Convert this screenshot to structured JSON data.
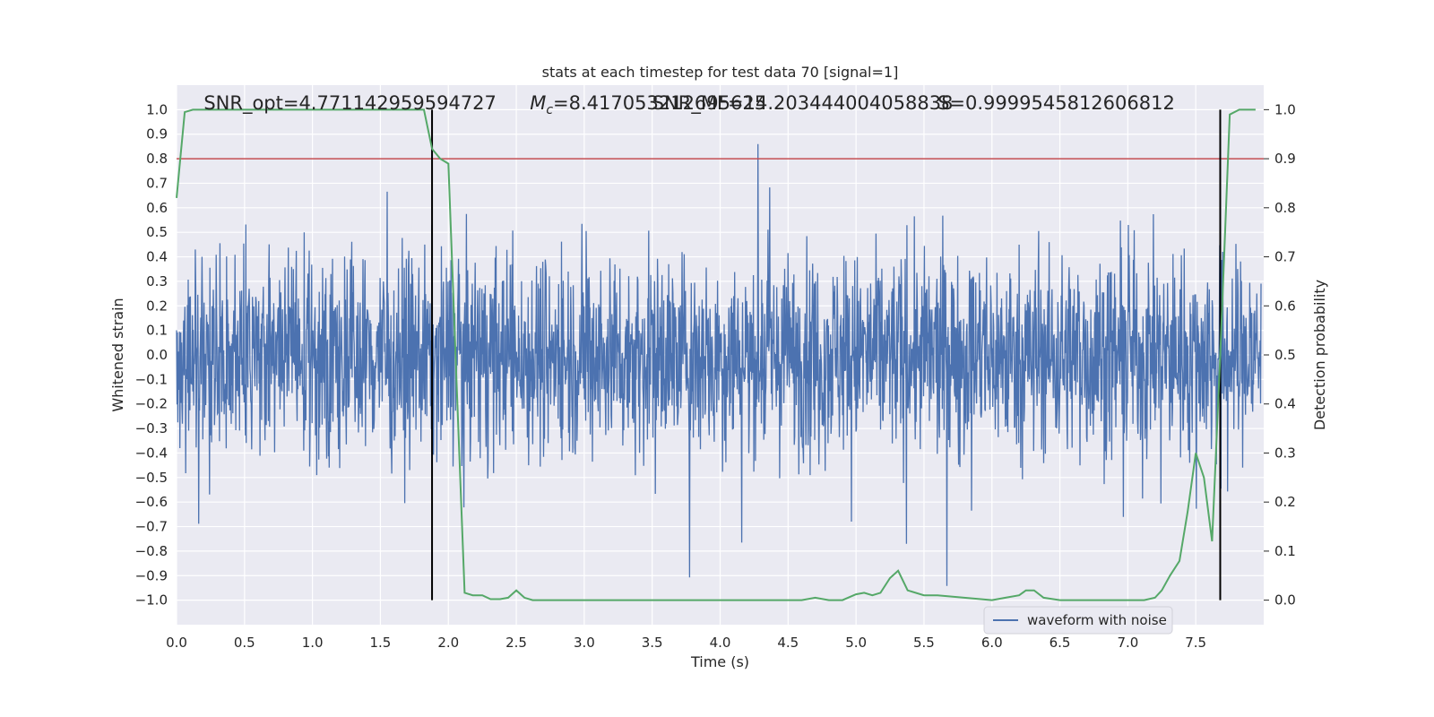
{
  "chart_data": {
    "type": "line",
    "title": "stats at each timestep for test data 70 [signal=1]",
    "xlabel": "Time (s)",
    "ylabel": "Whitened strain",
    "y2label": "Detection probability",
    "xlim": [
      0.0,
      8.0
    ],
    "ylim": [
      -1.1,
      1.1
    ],
    "y2lim": [
      -0.05,
      1.05
    ],
    "x_ticks": [
      "0.0",
      "0.5",
      "1.0",
      "1.5",
      "2.0",
      "2.5",
      "3.0",
      "3.5",
      "4.0",
      "4.5",
      "5.0",
      "5.5",
      "6.0",
      "6.5",
      "7.0",
      "7.5"
    ],
    "y_ticks": [
      "1.0",
      "0.9",
      "0.8",
      "0.7",
      "0.6",
      "0.5",
      "0.4",
      "0.3",
      "0.2",
      "0.1",
      "0.0",
      "−0.1",
      "−0.2",
      "−0.3",
      "−0.4",
      "−0.5",
      "−0.6",
      "−0.7",
      "−0.8",
      "−0.9",
      "−1.0"
    ],
    "y2_ticks": [
      "1.0",
      "0.9",
      "0.8",
      "0.7",
      "0.6",
      "0.5",
      "0.4",
      "0.3",
      "0.2",
      "0.1",
      "0.0"
    ],
    "grid": true,
    "legend": {
      "position": "bottom-right",
      "entries": [
        "waveform with noise"
      ]
    },
    "annotations": [
      {
        "text": "SNR_opt=4.771142959594727",
        "x": 0.2
      },
      {
        "text": "M_c=8.417053212695625",
        "x": 2.6,
        "math_symbol": "M",
        "math_sub": "c",
        "rest": "=8.417053212695625"
      },
      {
        "text": "SNR_MF=14.203444004058838",
        "x": 3.5
      },
      {
        "text": "S=0.9999545812606812",
        "x": 5.6
      }
    ],
    "threshold_line": {
      "y2": 0.9,
      "color": "#c44e52"
    },
    "event_markers": {
      "x": [
        1.88,
        7.68
      ],
      "color": "#000000"
    },
    "series": [
      {
        "name": "waveform with noise",
        "axis": "left",
        "color": "#4c72b0",
        "style": "dense noise, approx. ±0.4 typical, peaks to ±1.0"
      },
      {
        "axis": "right",
        "color": "#55a868",
        "x": [
          0.0,
          0.06,
          0.12,
          0.25,
          0.5,
          0.75,
          1.0,
          1.25,
          1.5,
          1.75,
          1.82,
          1.88,
          1.94,
          2.0,
          2.06,
          2.12,
          2.18,
          2.25,
          2.31,
          2.38,
          2.44,
          2.5,
          2.56,
          2.62,
          2.75,
          3.0,
          3.25,
          3.5,
          3.75,
          4.0,
          4.25,
          4.5,
          4.6,
          4.7,
          4.8,
          4.9,
          5.0,
          5.06,
          5.12,
          5.18,
          5.25,
          5.31,
          5.38,
          5.5,
          5.6,
          6.0,
          6.1,
          6.2,
          6.25,
          6.31,
          6.38,
          6.5,
          7.0,
          7.12,
          7.2,
          7.25,
          7.31,
          7.38,
          7.44,
          7.5,
          7.56,
          7.62,
          7.68,
          7.75,
          7.82,
          7.94
        ],
        "values": [
          0.82,
          0.995,
          1.0,
          1.0,
          1.0,
          1.0,
          1.0,
          1.0,
          1.0,
          1.0,
          1.0,
          0.92,
          0.9,
          0.89,
          0.45,
          0.015,
          0.01,
          0.01,
          0.002,
          0.002,
          0.005,
          0.02,
          0.005,
          0.0,
          0.0,
          0.0,
          0.0,
          0.0,
          0.0,
          0.0,
          0.0,
          0.0,
          0.0,
          0.005,
          0.0,
          0.0,
          0.012,
          0.015,
          0.01,
          0.015,
          0.045,
          0.06,
          0.02,
          0.01,
          0.01,
          0.0,
          0.005,
          0.01,
          0.02,
          0.02,
          0.005,
          0.0,
          0.0,
          0.0,
          0.005,
          0.02,
          0.05,
          0.08,
          0.18,
          0.3,
          0.25,
          0.12,
          0.5,
          0.99,
          1.0,
          1.0
        ]
      }
    ]
  }
}
